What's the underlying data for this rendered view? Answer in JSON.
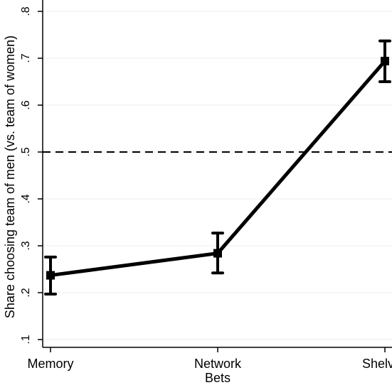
{
  "chart_data": {
    "type": "line",
    "xlabel": "Bets",
    "ylabel": "Share choosing team of men (vs. team of women)",
    "categories": [
      "Memory",
      "Network",
      "Shelves"
    ],
    "ylim": [
      0.1,
      0.8
    ],
    "yticks": [
      0.1,
      0.2,
      0.3,
      0.4,
      0.5,
      0.6,
      0.7,
      0.8
    ],
    "ytick_labels": [
      ".1",
      ".2",
      ".3",
      ".4",
      ".5",
      ".6",
      ".7",
      ".8"
    ],
    "grid": true,
    "reference_line": {
      "y": 0.5,
      "style": "dashed"
    },
    "series": [
      {
        "values": [
          0.237,
          0.284,
          0.694
        ],
        "ci_lower": [
          0.197,
          0.242,
          0.65
        ],
        "ci_upper": [
          0.276,
          0.327,
          0.737
        ]
      }
    ],
    "colors": {
      "line": "#000000",
      "grid": "#eeeeee"
    }
  }
}
